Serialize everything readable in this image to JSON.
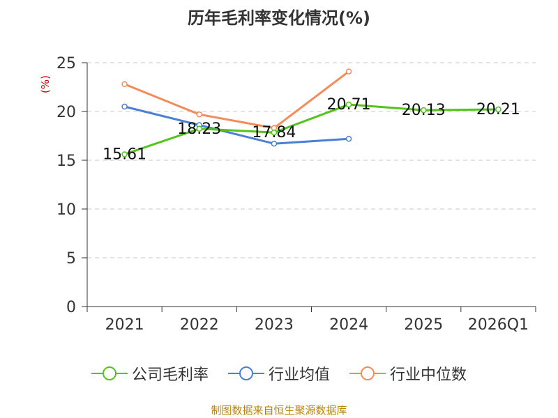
{
  "chart_data": {
    "type": "line",
    "title": "历年毛利率变化情况(%)",
    "ylabel": "(%)",
    "categories": [
      "2021",
      "2022",
      "2023",
      "2024",
      "2025",
      "2026Q1"
    ],
    "ylim": [
      0,
      25
    ],
    "yticks": [
      0,
      5,
      10,
      15,
      20,
      25
    ],
    "grid": true,
    "legend_position": "bottom",
    "series": [
      {
        "name": "公司毛利率",
        "color": "#52c41a",
        "values": [
          15.61,
          18.23,
          17.84,
          20.71,
          20.13,
          20.21
        ],
        "labels": [
          "15.61",
          "18.23",
          "17.84",
          "20.71",
          "20.13",
          "20.21"
        ]
      },
      {
        "name": "行业均值",
        "color": "#4a7fd6",
        "values": [
          20.5,
          18.6,
          16.7,
          17.2,
          null,
          null
        ]
      },
      {
        "name": "行业中位数",
        "color": "#f28c5a",
        "values": [
          22.8,
          19.7,
          18.3,
          24.1,
          null,
          null
        ]
      }
    ]
  },
  "source": "制图数据来自恒生聚源数据库"
}
